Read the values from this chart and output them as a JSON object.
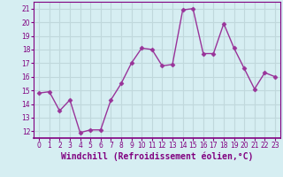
{
  "x": [
    0,
    1,
    2,
    3,
    4,
    5,
    6,
    7,
    8,
    9,
    10,
    11,
    12,
    13,
    14,
    15,
    16,
    17,
    18,
    19,
    20,
    21,
    22,
    23
  ],
  "y": [
    14.8,
    14.9,
    13.5,
    14.3,
    11.9,
    12.1,
    12.1,
    14.3,
    15.5,
    17.0,
    18.1,
    18.0,
    16.8,
    16.9,
    20.9,
    21.0,
    17.7,
    17.7,
    19.9,
    18.1,
    16.6,
    15.1,
    16.3,
    16.0
  ],
  "line_color": "#993399",
  "marker": "D",
  "marker_size": 2.5,
  "linewidth": 1.0,
  "xlabel": "Windchill (Refroidissement éolien,°C)",
  "xlabel_fontsize": 7,
  "ylim": [
    11.5,
    21.5
  ],
  "xlim": [
    -0.5,
    23.5
  ],
  "yticks": [
    12,
    13,
    14,
    15,
    16,
    17,
    18,
    19,
    20,
    21
  ],
  "xticks": [
    0,
    1,
    2,
    3,
    4,
    5,
    6,
    7,
    8,
    9,
    10,
    11,
    12,
    13,
    14,
    15,
    16,
    17,
    18,
    19,
    20,
    21,
    22,
    23
  ],
  "bg_color": "#d6eef2",
  "grid_color": "#c0d8dc",
  "tick_color": "#800080",
  "label_color": "#800080",
  "spine_color": "#800080"
}
